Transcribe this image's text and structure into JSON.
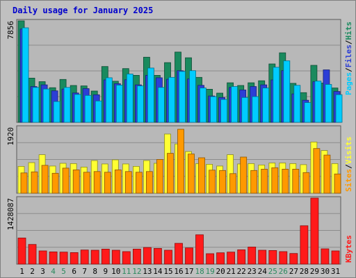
{
  "title": "Daily usage for January 2025",
  "colors": {
    "hits": "#1a8a5e",
    "files": "#2c3ed6",
    "pages": "#00ccff",
    "visits": "#ffff33",
    "sites": "#ff9900",
    "kbytes": "#ff1a1a",
    "weekend_label": "#2a8a5e",
    "legend_slash": "#000000",
    "plot_bg": "#b8b8b8",
    "grid": "#8c8c8c",
    "title": "#0000cc"
  },
  "legend": {
    "top": [
      "Pages",
      "Files",
      "Hits"
    ],
    "middle": [
      "Sites",
      "Visits"
    ],
    "bottom": [
      "KBytes"
    ],
    "separator": "/"
  },
  "chart_data": [
    {
      "type": "bar",
      "panel": "hits-files-pages",
      "ymax_label": "7856",
      "ylim": [
        0,
        7856
      ],
      "categories": [
        "1",
        "2",
        "3",
        "4",
        "5",
        "6",
        "7",
        "8",
        "9",
        "10",
        "11",
        "12",
        "13",
        "14",
        "15",
        "16",
        "17",
        "18",
        "19",
        "20",
        "21",
        "22",
        "23",
        "24",
        "25",
        "26",
        "27",
        "28",
        "29",
        "30",
        "31"
      ],
      "weekend": [
        "4",
        "5",
        "11",
        "12",
        "18",
        "19",
        "25",
        "26"
      ],
      "series": [
        {
          "name": "Hits",
          "values": [
            7856,
            3420,
            3150,
            2680,
            3320,
            2850,
            2820,
            2420,
            4320,
            3180,
            4160,
            3640,
            5040,
            3640,
            4620,
            5440,
            5000,
            3480,
            2560,
            2260,
            3060,
            2850,
            3060,
            3220,
            4520,
            5380,
            3020,
            2300,
            4410,
            3040,
            2660
          ]
        },
        {
          "name": "Files",
          "values": [
            7220,
            2770,
            2900,
            2440,
            2570,
            2270,
            2610,
            2130,
            3280,
            2990,
            3300,
            2900,
            3630,
            3450,
            3330,
            4000,
            3360,
            2860,
            2040,
            1920,
            2700,
            2510,
            2770,
            2900,
            3280,
            4000,
            2200,
            1710,
            3140,
            4060,
            2390
          ]
        },
        {
          "name": "Pages",
          "values": [
            7320,
            2700,
            2580,
            1610,
            2700,
            2160,
            2080,
            1650,
            3450,
            2880,
            3740,
            2820,
            4200,
            2700,
            3480,
            3940,
            4000,
            2660,
            1990,
            1770,
            2770,
            1920,
            1990,
            2660,
            4260,
            4760,
            2860,
            1530,
            3190,
            2930,
            2140
          ]
        }
      ]
    },
    {
      "type": "bar",
      "panel": "visits-sites",
      "ymax_label": "1920",
      "ylim": [
        0,
        1920
      ],
      "series": [
        {
          "name": "Visits",
          "values": [
            780,
            890,
            1120,
            790,
            870,
            860,
            760,
            950,
            850,
            970,
            850,
            780,
            950,
            870,
            1720,
            1430,
            1210,
            860,
            840,
            790,
            1120,
            850,
            860,
            820,
            880,
            880,
            860,
            830,
            1490,
            1240,
            860
          ]
        },
        {
          "name": "Sites",
          "values": [
            590,
            620,
            810,
            580,
            730,
            680,
            610,
            630,
            610,
            680,
            630,
            610,
            630,
            980,
            1160,
            1860,
            1140,
            1030,
            670,
            660,
            570,
            1050,
            660,
            700,
            740,
            700,
            700,
            600,
            1300,
            1110,
            560
          ]
        }
      ]
    },
    {
      "type": "bar",
      "panel": "kbytes",
      "ymax_label": "1428087",
      "ylim": [
        0,
        1428087
      ],
      "series": [
        {
          "name": "KBytes",
          "values": [
            565000,
            425000,
            285000,
            265000,
            260000,
            250000,
            305000,
            300000,
            325000,
            300000,
            270000,
            325000,
            360000,
            340000,
            300000,
            450000,
            350000,
            635000,
            225000,
            245000,
            260000,
            310000,
            370000,
            300000,
            295000,
            270000,
            230000,
            830000,
            1428087,
            330000,
            285000
          ]
        }
      ]
    }
  ]
}
